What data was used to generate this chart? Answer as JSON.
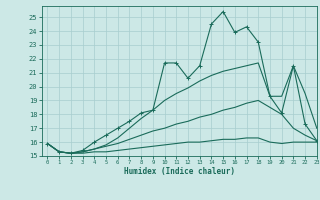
{
  "title": "",
  "xlabel": "Humidex (Indice chaleur)",
  "bg_color": "#cce8e6",
  "line_color": "#1a6b5a",
  "grid_color": "#a8cece",
  "xlim": [
    -0.5,
    23
  ],
  "ylim": [
    15,
    25.8
  ],
  "yticks": [
    15,
    16,
    17,
    18,
    19,
    20,
    21,
    22,
    23,
    24,
    25
  ],
  "xticks": [
    0,
    1,
    2,
    3,
    4,
    5,
    6,
    7,
    8,
    9,
    10,
    11,
    12,
    13,
    14,
    15,
    16,
    17,
    18,
    19,
    20,
    21,
    22,
    23
  ],
  "series": [
    {
      "x": [
        0,
        1,
        2,
        3,
        4,
        5,
        6,
        7,
        8,
        9,
        10,
        11,
        12,
        13,
        14,
        15,
        16,
        17,
        18,
        19,
        20,
        21,
        22,
        23
      ],
      "y": [
        15.9,
        15.3,
        15.2,
        15.4,
        16.0,
        16.5,
        17.0,
        17.5,
        18.1,
        18.3,
        21.7,
        21.7,
        20.6,
        21.5,
        24.5,
        25.4,
        23.9,
        24.3,
        23.2,
        19.3,
        18.1,
        21.5,
        17.3,
        16.1
      ],
      "has_marker": true
    },
    {
      "x": [
        0,
        1,
        2,
        3,
        4,
        5,
        6,
        7,
        8,
        9,
        10,
        11,
        12,
        13,
        14,
        15,
        16,
        17,
        18,
        19,
        20,
        21,
        22,
        23
      ],
      "y": [
        15.9,
        15.3,
        15.2,
        15.3,
        15.5,
        15.8,
        16.3,
        17.0,
        17.7,
        18.3,
        19.0,
        19.5,
        19.9,
        20.4,
        20.8,
        21.1,
        21.3,
        21.5,
        21.7,
        19.3,
        19.3,
        21.5,
        19.5,
        17.0
      ],
      "has_marker": false
    },
    {
      "x": [
        0,
        1,
        2,
        3,
        4,
        5,
        6,
        7,
        8,
        9,
        10,
        11,
        12,
        13,
        14,
        15,
        16,
        17,
        18,
        19,
        20,
        21,
        22,
        23
      ],
      "y": [
        15.9,
        15.3,
        15.2,
        15.3,
        15.5,
        15.7,
        15.9,
        16.2,
        16.5,
        16.8,
        17.0,
        17.3,
        17.5,
        17.8,
        18.0,
        18.3,
        18.5,
        18.8,
        19.0,
        18.5,
        18.0,
        17.0,
        16.5,
        16.1
      ],
      "has_marker": false
    },
    {
      "x": [
        0,
        1,
        2,
        3,
        4,
        5,
        6,
        7,
        8,
        9,
        10,
        11,
        12,
        13,
        14,
        15,
        16,
        17,
        18,
        19,
        20,
        21,
        22,
        23
      ],
      "y": [
        15.9,
        15.3,
        15.2,
        15.2,
        15.3,
        15.3,
        15.4,
        15.5,
        15.6,
        15.7,
        15.8,
        15.9,
        16.0,
        16.0,
        16.1,
        16.2,
        16.2,
        16.3,
        16.3,
        16.0,
        15.9,
        16.0,
        16.0,
        16.0
      ],
      "has_marker": false
    }
  ]
}
